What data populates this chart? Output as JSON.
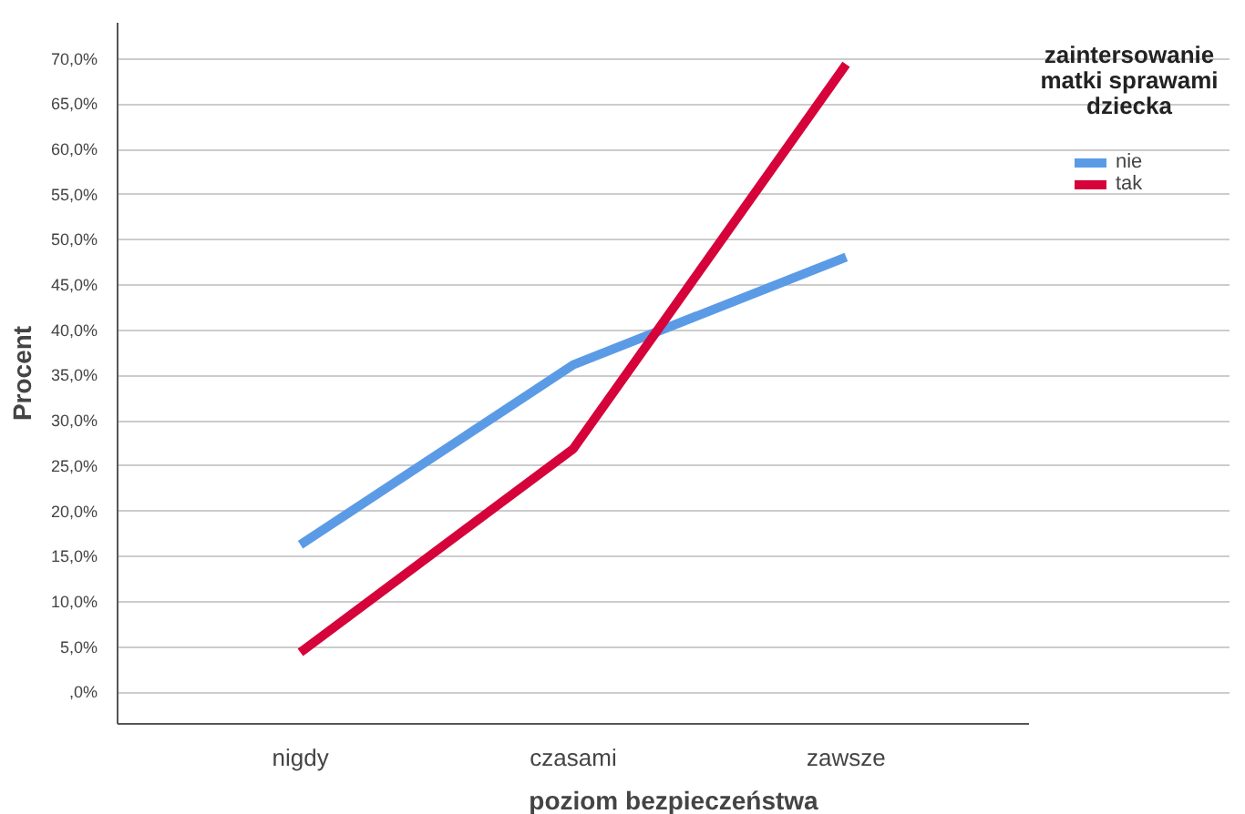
{
  "chart_data": {
    "type": "line",
    "xlabel": "poziom bezpieczeństwa",
    "ylabel": "Procent",
    "legend_title": "zaintersowanie matki sprawami dziecka",
    "categories": [
      "nigdy",
      "czasami",
      "zawsze"
    ],
    "series": [
      {
        "name": "nie",
        "color": "#5b9be6",
        "values": [
          16.3,
          36.2,
          48.1
        ]
      },
      {
        "name": "tak",
        "color": "#d6033a",
        "values": [
          4.4,
          26.9,
          69.4
        ]
      }
    ],
    "ylim": [
      -3.5,
      74
    ],
    "yticks": [
      {
        "value": 0,
        "label": ",0%"
      },
      {
        "value": 5,
        "label": "5,0%"
      },
      {
        "value": 10,
        "label": "10,0%"
      },
      {
        "value": 15,
        "label": "15,0%"
      },
      {
        "value": 20,
        "label": "20,0%"
      },
      {
        "value": 25,
        "label": "25,0%"
      },
      {
        "value": 30,
        "label": "30,0%"
      },
      {
        "value": 35,
        "label": "35,0%"
      },
      {
        "value": 40,
        "label": "40,0%"
      },
      {
        "value": 45,
        "label": "45,0%"
      },
      {
        "value": 50,
        "label": "50,0%"
      },
      {
        "value": 55,
        "label": "55,0%"
      },
      {
        "value": 60,
        "label": "60,0%"
      },
      {
        "value": 65,
        "label": "65,0%"
      },
      {
        "value": 70,
        "label": "70,0%"
      }
    ],
    "grid": "y",
    "legend": "top right",
    "line_style": "solid",
    "marker": "none"
  }
}
